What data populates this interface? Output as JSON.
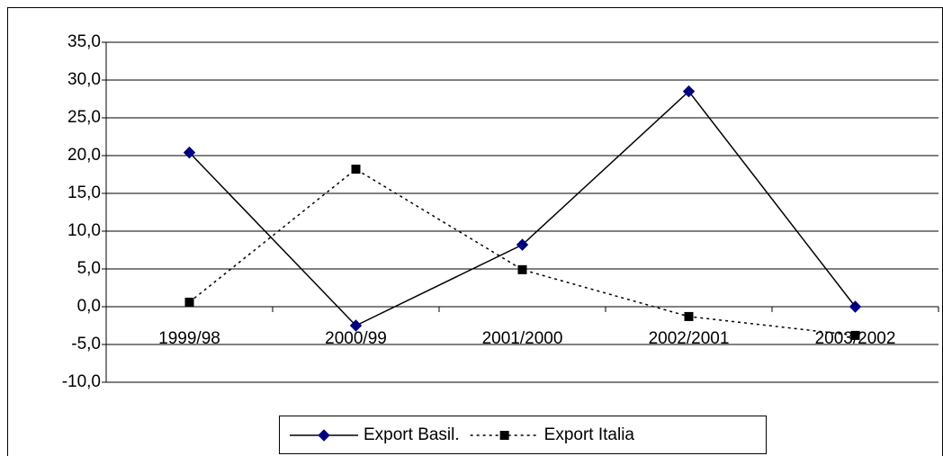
{
  "chart_data": {
    "type": "line",
    "categories": [
      "1999/98",
      "2000/99",
      "2001/2000",
      "2002/2001",
      "2003/2002"
    ],
    "series": [
      {
        "name": "Export Basil.",
        "color": "#000080",
        "line_color": "#000000",
        "dash": "solid",
        "marker": "diamond",
        "values": [
          20.4,
          -2.5,
          8.2,
          28.5,
          0.0
        ]
      },
      {
        "name": "Export Italia",
        "color": "#000000",
        "line_color": "#000000",
        "dash": "dotted",
        "marker": "square",
        "values": [
          0.6,
          18.2,
          4.9,
          -1.3,
          -3.8
        ]
      }
    ],
    "ylim": [
      -10,
      35
    ],
    "yticks": [
      {
        "value": -10,
        "label": "-10,0"
      },
      {
        "value": -5,
        "label": "-5,0"
      },
      {
        "value": 0,
        "label": "0,0"
      },
      {
        "value": 5,
        "label": "5,0"
      },
      {
        "value": 10,
        "label": "10,0"
      },
      {
        "value": 15,
        "label": "15,0"
      },
      {
        "value": 20,
        "label": "20,0"
      },
      {
        "value": 25,
        "label": "25,0"
      },
      {
        "value": 30,
        "label": "30,0"
      },
      {
        "value": 35,
        "label": "35,0"
      }
    ],
    "grid": true,
    "legend": "bottom"
  }
}
